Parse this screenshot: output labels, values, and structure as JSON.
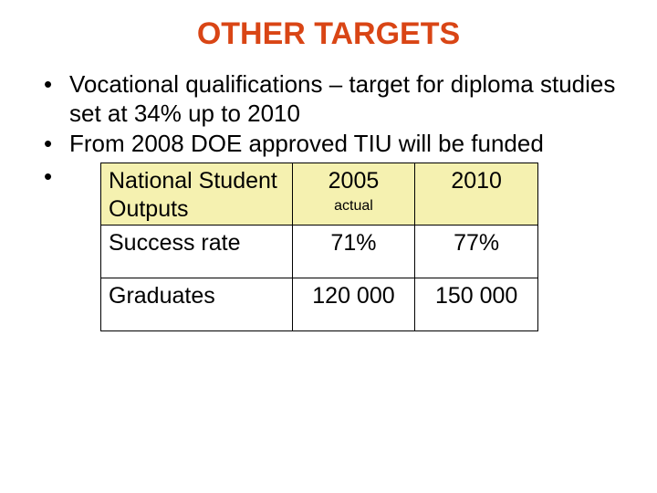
{
  "title": {
    "text": "OTHER TARGETS",
    "color": "#d94515"
  },
  "bullets": [
    "Vocational qualifications – target for diploma studies set at 34% up to 2010",
    "From 2008 DOE approved TIU will be funded"
  ],
  "table": {
    "header_bg": "#f5f1b0",
    "columns": [
      {
        "label": "National Student Outputs",
        "sub": ""
      },
      {
        "label": "2005",
        "sub": "actual"
      },
      {
        "label": "2010",
        "sub": ""
      }
    ],
    "col_widths": [
      "210px",
      "135px",
      "135px"
    ],
    "rows": [
      [
        "Success rate",
        "71%",
        "77%"
      ],
      [
        "Graduates",
        "120 000",
        "150 000"
      ]
    ]
  }
}
